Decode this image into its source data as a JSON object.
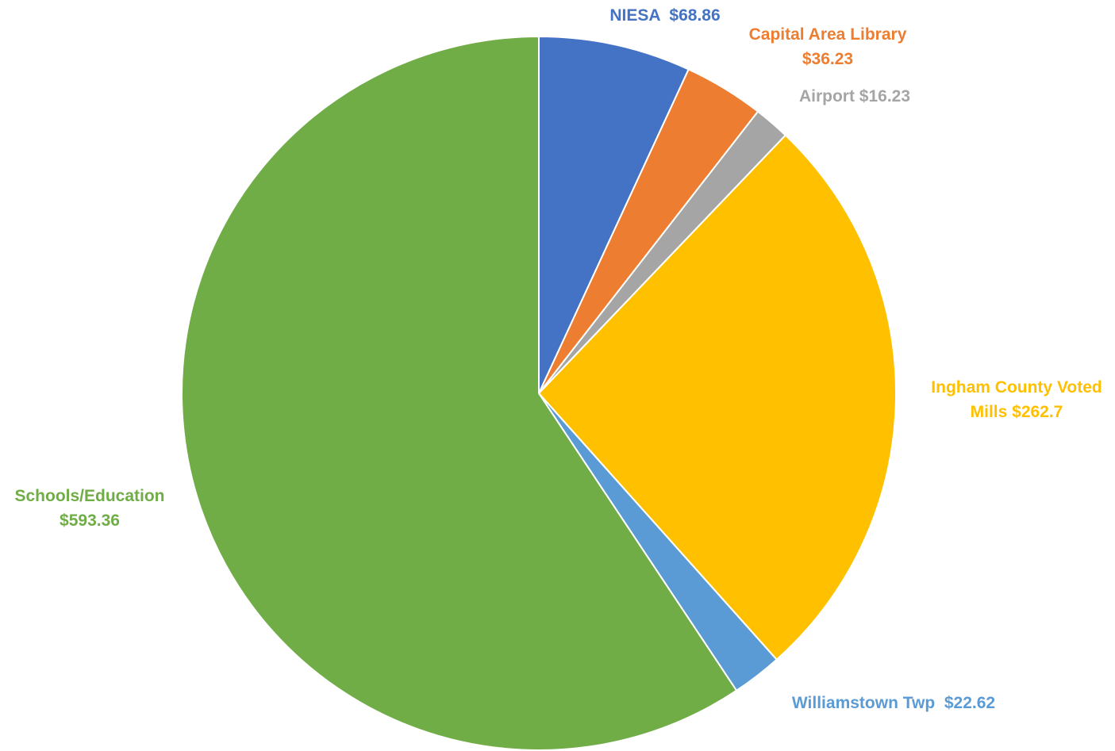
{
  "chart_data": {
    "type": "pie",
    "title": "",
    "start_angle_deg": 0,
    "direction": "clockwise",
    "slices": [
      {
        "name": "NIESA",
        "value": 68.86,
        "label_lines": [
          "NIESA  $68.86"
        ],
        "color": "#4472C4"
      },
      {
        "name": "Capital Area Library",
        "value": 36.23,
        "label_lines": [
          "Capital Area Library",
          "$36.23"
        ],
        "color": "#ED7D31"
      },
      {
        "name": "Airport",
        "value": 16.23,
        "label_lines": [
          "Airport $16.23"
        ],
        "color": "#A5A5A5"
      },
      {
        "name": "Ingham County Voted Mills",
        "value": 262.7,
        "label_lines": [
          "Ingham County Voted",
          "Mills $262.7"
        ],
        "color": "#FFC000"
      },
      {
        "name": "Williamstown Twp",
        "value": 22.62,
        "label_lines": [
          "Williamstown Twp  $22.62"
        ],
        "color": "#5B9BD5"
      },
      {
        "name": "Schools/Education",
        "value": 593.36,
        "label_lines": [
          "Schools/Education",
          "$593.36"
        ],
        "color": "#70AD47"
      }
    ]
  }
}
